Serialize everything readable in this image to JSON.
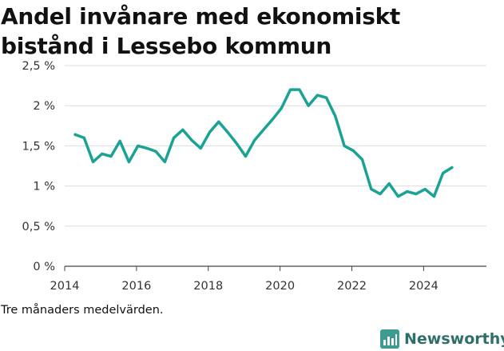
{
  "title": "Andel invånare med ekonomiskt bistånd i Lessebo kommun",
  "caption": "Tre månaders medelvärden.",
  "brand": {
    "name": "Newsworthy",
    "icon": "bar-chart-logo-icon"
  },
  "colors": {
    "line": "#1aa394",
    "grid": "#dddddd",
    "axis": "#444444",
    "brand": "#2e6f6a"
  },
  "chart_data": {
    "type": "line",
    "title": "Andel invånare med ekonomiskt bistånd i Lessebo kommun",
    "xlabel": "",
    "ylabel": "",
    "xlim": [
      2014,
      2025.75
    ],
    "ylim": [
      0,
      2.5
    ],
    "x_ticks": [
      2014,
      2016,
      2018,
      2020,
      2022,
      2024
    ],
    "y_ticks": [
      {
        "value": 0,
        "label": "0 %"
      },
      {
        "value": 0.5,
        "label": "0,5 %"
      },
      {
        "value": 1,
        "label": "1 %"
      },
      {
        "value": 1.5,
        "label": "1,5 %"
      },
      {
        "value": 2,
        "label": "2 %"
      },
      {
        "value": 2.5,
        "label": "2,5 %"
      }
    ],
    "grid": "horizontal",
    "series": [
      {
        "x": [
          2014.29,
          2014.54,
          2014.79,
          2015.04,
          2015.29,
          2015.54,
          2015.79,
          2016.04,
          2016.29,
          2016.54,
          2016.79,
          2017.04,
          2017.29,
          2017.54,
          2017.79,
          2018.04,
          2018.29,
          2018.54,
          2018.79,
          2019.04,
          2019.29,
          2019.54,
          2019.79,
          2020.04,
          2020.29,
          2020.54,
          2020.79,
          2021.04,
          2021.29,
          2021.54,
          2021.79,
          2022.04,
          2022.29,
          2022.54,
          2022.79,
          2023.04,
          2023.29,
          2023.54,
          2023.79,
          2024.04,
          2024.29,
          2024.54,
          2024.79
        ],
        "values": [
          1.64,
          1.6,
          1.3,
          1.4,
          1.37,
          1.56,
          1.3,
          1.5,
          1.47,
          1.43,
          1.3,
          1.6,
          1.7,
          1.57,
          1.47,
          1.67,
          1.8,
          1.67,
          1.53,
          1.37,
          1.57,
          1.7,
          1.83,
          1.97,
          2.2,
          2.2,
          2.0,
          2.13,
          2.1,
          1.87,
          1.5,
          1.44,
          1.33,
          0.96,
          0.9,
          1.03,
          0.87,
          0.93,
          0.9,
          0.96,
          0.87,
          1.16,
          1.23
        ]
      }
    ]
  }
}
